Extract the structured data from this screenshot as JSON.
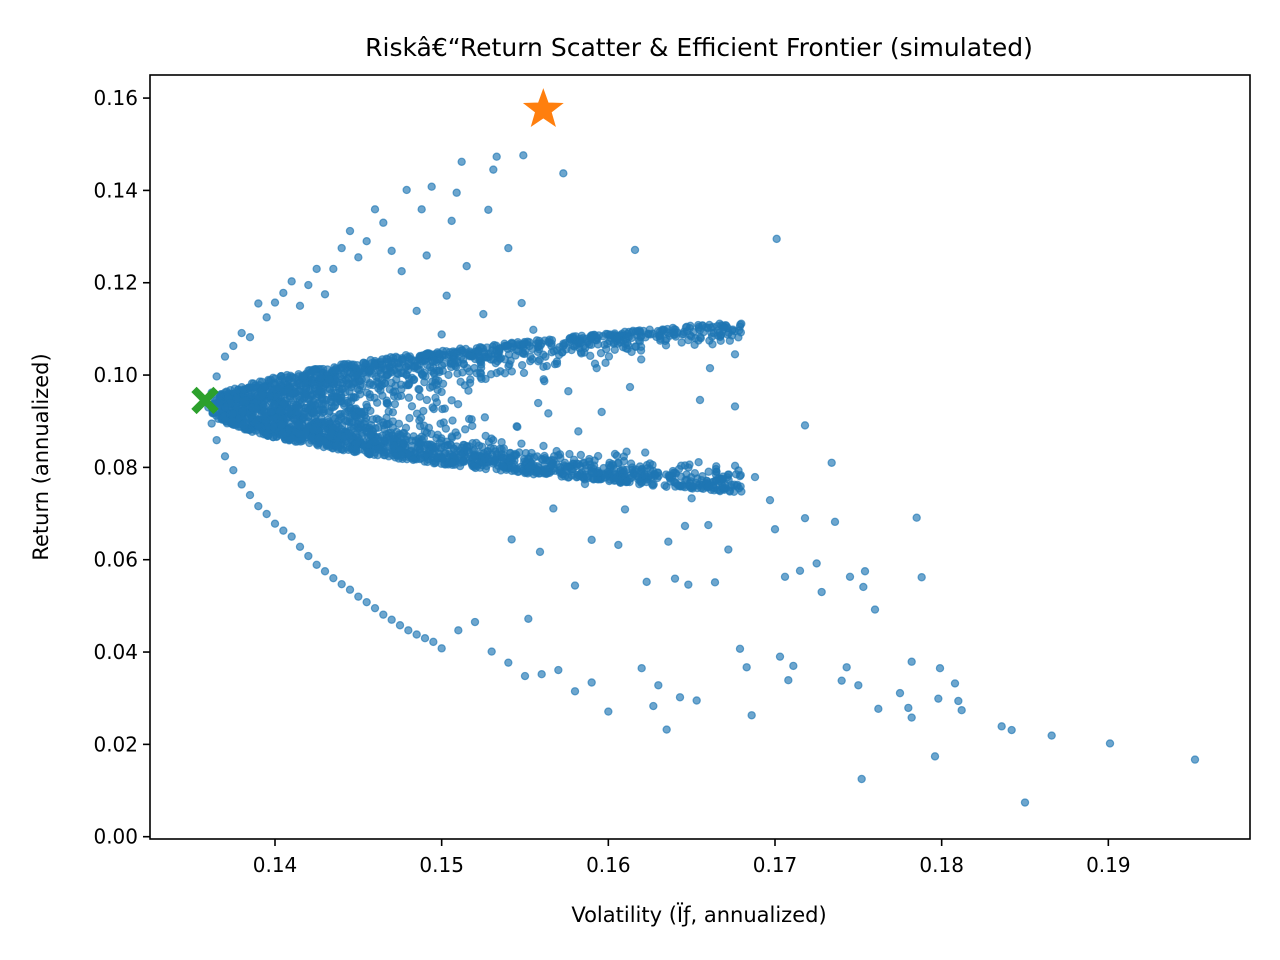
{
  "chart_data": {
    "type": "scatter",
    "title": "Riskâ€“Return Scatter & Efficient Frontier (simulated)",
    "xlabel": "Volatility (Ïƒ, annualized)",
    "ylabel": "Return (annualized)",
    "xlim": [
      0.1325,
      0.1985
    ],
    "ylim": [
      -0.0005,
      0.165
    ],
    "xticks": [
      "0.14",
      "0.15",
      "0.16",
      "0.17",
      "0.18",
      "0.19"
    ],
    "xtick_values": [
      0.14,
      0.15,
      0.16,
      0.17,
      0.18,
      0.19
    ],
    "yticks": [
      "0.00",
      "0.02",
      "0.04",
      "0.06",
      "0.08",
      "0.10",
      "0.12",
      "0.14",
      "0.16"
    ],
    "ytick_values": [
      0.0,
      0.02,
      0.04,
      0.06,
      0.08,
      0.1,
      0.12,
      0.14,
      0.16
    ],
    "grid": false,
    "legend": "none",
    "colors": {
      "portfolios": "#1f77b4",
      "max_sharpe": "#ff7f0e",
      "min_volatility": "#2ca02c"
    },
    "series": [
      {
        "marker": "circle",
        "color": "#1f77b4",
        "opacity": 0.65,
        "points": [
          [
            0.1952,
            0.0167
          ],
          [
            0.1901,
            0.0202
          ],
          [
            0.1866,
            0.0219
          ],
          [
            0.185,
            0.0074
          ],
          [
            0.1842,
            0.0231
          ],
          [
            0.1836,
            0.0239
          ],
          [
            0.1796,
            0.0174
          ],
          [
            0.1812,
            0.0274
          ],
          [
            0.181,
            0.0294
          ],
          [
            0.1808,
            0.0332
          ],
          [
            0.1799,
            0.0365
          ],
          [
            0.1798,
            0.0299
          ],
          [
            0.1782,
            0.0379
          ],
          [
            0.1782,
            0.0258
          ],
          [
            0.178,
            0.0279
          ],
          [
            0.1775,
            0.0311
          ],
          [
            0.1788,
            0.0562
          ],
          [
            0.1785,
            0.0691
          ],
          [
            0.1752,
            0.0125
          ],
          [
            0.1762,
            0.0277
          ],
          [
            0.176,
            0.0492
          ],
          [
            0.1754,
            0.0575
          ],
          [
            0.1753,
            0.0541
          ],
          [
            0.175,
            0.0328
          ],
          [
            0.1745,
            0.0563
          ],
          [
            0.1743,
            0.0367
          ],
          [
            0.174,
            0.0338
          ],
          [
            0.1736,
            0.0682
          ],
          [
            0.1734,
            0.081
          ],
          [
            0.1728,
            0.053
          ],
          [
            0.1725,
            0.0592
          ],
          [
            0.1718,
            0.0891
          ],
          [
            0.1718,
            0.069
          ],
          [
            0.1715,
            0.0576
          ],
          [
            0.1711,
            0.037
          ],
          [
            0.1708,
            0.0339
          ],
          [
            0.1706,
            0.0563
          ],
          [
            0.1703,
            0.039
          ],
          [
            0.17,
            0.0666
          ],
          [
            0.1697,
            0.0729
          ],
          [
            0.1701,
            0.1295
          ],
          [
            0.1688,
            0.0779
          ],
          [
            0.1686,
            0.0263
          ],
          [
            0.1683,
            0.0367
          ],
          [
            0.1679,
            0.0407
          ],
          [
            0.1676,
            0.1045
          ],
          [
            0.1676,
            0.0932
          ],
          [
            0.1672,
            0.0622
          ],
          [
            0.1668,
            0.0774
          ],
          [
            0.1664,
            0.0551
          ],
          [
            0.1661,
            0.1015
          ],
          [
            0.166,
            0.0675
          ],
          [
            0.1655,
            0.0946
          ],
          [
            0.165,
            0.0733
          ],
          [
            0.1648,
            0.0546
          ],
          [
            0.1646,
            0.0673
          ],
          [
            0.1643,
            0.0302
          ],
          [
            0.164,
            0.0559
          ],
          [
            0.1636,
            0.0639
          ],
          [
            0.163,
            0.0328
          ],
          [
            0.1627,
            0.0283
          ],
          [
            0.1623,
            0.0552
          ],
          [
            0.1619,
            0.0802
          ],
          [
            0.1616,
            0.1271
          ],
          [
            0.1613,
            0.0974
          ],
          [
            0.161,
            0.0709
          ],
          [
            0.1606,
            0.0632
          ],
          [
            0.1604,
            0.0829
          ],
          [
            0.16,
            0.0271
          ],
          [
            0.1596,
            0.092
          ],
          [
            0.1593,
            0.1015
          ],
          [
            0.159,
            0.0643
          ],
          [
            0.1586,
            0.0764
          ],
          [
            0.1582,
            0.0878
          ],
          [
            0.158,
            0.0544
          ],
          [
            0.1577,
            0.108
          ],
          [
            0.1576,
            0.0965
          ],
          [
            0.1573,
            0.1437
          ],
          [
            0.157,
            0.0826
          ],
          [
            0.1567,
            0.0711
          ],
          [
            0.1564,
            0.0917
          ],
          [
            0.1561,
            0.1044
          ],
          [
            0.1559,
            0.0617
          ],
          [
            0.1555,
            0.1098
          ],
          [
            0.1552,
            0.0472
          ],
          [
            0.1549,
            0.1476
          ],
          [
            0.1548,
            0.1156
          ],
          [
            0.1545,
            0.0889
          ],
          [
            0.1542,
            0.0644
          ],
          [
            0.154,
            0.1275
          ],
          [
            0.1533,
            0.1473
          ],
          [
            0.1531,
            0.1445
          ],
          [
            0.1528,
            0.1358
          ],
          [
            0.1525,
            0.1132
          ],
          [
            0.1521,
            0.1004
          ],
          [
            0.1518,
            0.0904
          ],
          [
            0.1515,
            0.1236
          ],
          [
            0.1512,
            0.1462
          ],
          [
            0.1509,
            0.1395
          ],
          [
            0.1506,
            0.1334
          ],
          [
            0.1503,
            0.1172
          ],
          [
            0.15,
            0.1088
          ],
          [
            0.1497,
            0.0979
          ],
          [
            0.1494,
            0.1408
          ],
          [
            0.1491,
            0.1259
          ],
          [
            0.1488,
            0.1359
          ],
          [
            0.1485,
            0.1139
          ],
          [
            0.1482,
            0.1033
          ],
          [
            0.1479,
            0.1401
          ],
          [
            0.1476,
            0.1225
          ],
          [
            0.147,
            0.1269
          ],
          [
            0.1465,
            0.133
          ],
          [
            0.146,
            0.1359
          ],
          [
            0.1455,
            0.129
          ],
          [
            0.145,
            0.1255
          ],
          [
            0.1445,
            0.1312
          ],
          [
            0.144,
            0.1275
          ],
          [
            0.1435,
            0.123
          ],
          [
            0.143,
            0.1175
          ],
          [
            0.1425,
            0.123
          ],
          [
            0.142,
            0.1195
          ],
          [
            0.1415,
            0.115
          ],
          [
            0.141,
            0.1203
          ],
          [
            0.1405,
            0.1178
          ],
          [
            0.14,
            0.1157
          ],
          [
            0.1395,
            0.1125
          ],
          [
            0.139,
            0.1155
          ],
          [
            0.1385,
            0.1082
          ],
          [
            0.138,
            0.1091
          ],
          [
            0.1375,
            0.1063
          ],
          [
            0.137,
            0.104
          ],
          [
            0.1365,
            0.0997
          ],
          [
            0.1362,
            0.0962
          ],
          [
            0.136,
            0.093
          ],
          [
            0.1362,
            0.0895
          ],
          [
            0.1365,
            0.0859
          ],
          [
            0.137,
            0.0824
          ],
          [
            0.1375,
            0.0794
          ],
          [
            0.138,
            0.0763
          ],
          [
            0.1385,
            0.074
          ],
          [
            0.139,
            0.0716
          ],
          [
            0.1395,
            0.0699
          ],
          [
            0.14,
            0.0678
          ],
          [
            0.1405,
            0.0663
          ],
          [
            0.141,
            0.065
          ],
          [
            0.1415,
            0.0628
          ],
          [
            0.142,
            0.0608
          ],
          [
            0.1425,
            0.0589
          ],
          [
            0.143,
            0.0575
          ],
          [
            0.1435,
            0.056
          ],
          [
            0.144,
            0.0547
          ],
          [
            0.1445,
            0.0535
          ],
          [
            0.145,
            0.052
          ],
          [
            0.1455,
            0.0508
          ],
          [
            0.146,
            0.0495
          ],
          [
            0.1465,
            0.0481
          ],
          [
            0.147,
            0.047
          ],
          [
            0.1475,
            0.0458
          ],
          [
            0.148,
            0.0447
          ],
          [
            0.1485,
            0.0438
          ],
          [
            0.149,
            0.043
          ],
          [
            0.1495,
            0.0422
          ],
          [
            0.15,
            0.0408
          ],
          [
            0.151,
            0.0447
          ],
          [
            0.152,
            0.0465
          ],
          [
            0.153,
            0.0401
          ],
          [
            0.154,
            0.0377
          ],
          [
            0.155,
            0.0348
          ],
          [
            0.156,
            0.0352
          ],
          [
            0.157,
            0.0361
          ],
          [
            0.158,
            0.0315
          ],
          [
            0.159,
            0.0334
          ],
          [
            0.162,
            0.0365
          ],
          [
            0.1635,
            0.0232
          ],
          [
            0.1653,
            0.0295
          ]
        ],
        "cluster_region": {
          "x_center": 0.1435,
          "y_center": 0.087,
          "x_spread": 0.0055,
          "y_spread": 0.019,
          "count": 2600
        }
      }
    ],
    "highlights": [
      {
        "marker": "star",
        "color": "#ff7f0e",
        "x": 0.1561,
        "y": 0.1575
      },
      {
        "marker": "x",
        "color": "#2ca02c",
        "x": 0.1358,
        "y": 0.0945
      }
    ]
  }
}
